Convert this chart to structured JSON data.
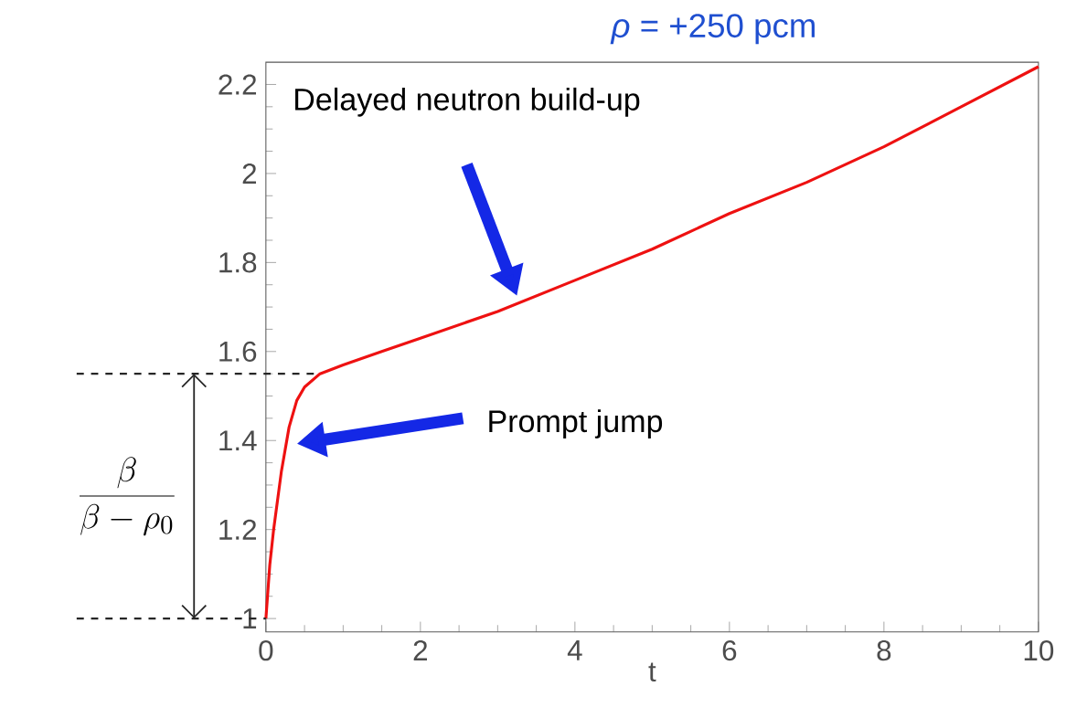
{
  "chart_data": {
    "type": "line",
    "title": "*ρ* = +250 pcm",
    "xlabel": "t",
    "x": [
      0,
      0.05,
      0.1,
      0.2,
      0.3,
      0.4,
      0.5,
      0.7,
      1,
      1.5,
      2,
      3,
      4,
      5,
      6,
      7,
      8,
      9,
      10
    ],
    "series": [
      {
        "color": "#ee1111",
        "values": [
          1.0,
          1.12,
          1.2,
          1.33,
          1.43,
          1.49,
          1.52,
          1.55,
          1.57,
          1.6,
          1.63,
          1.69,
          1.76,
          1.83,
          1.91,
          1.98,
          2.06,
          2.15,
          2.24
        ]
      }
    ],
    "xlim": [
      0,
      10
    ],
    "ylim": [
      0.97,
      2.25
    ],
    "xticks": [
      0,
      2,
      4,
      6,
      8,
      10
    ],
    "yticks": [
      1,
      1.2,
      1.4,
      1.6,
      1.8,
      2,
      2.2
    ],
    "grid": false,
    "marker": "none",
    "line_style": "solid",
    "annotations": [
      "Delayed neutron build-up",
      "Prompt jump",
      "\\frac{\\beta}{\\beta - \\rho_0}"
    ]
  }
}
